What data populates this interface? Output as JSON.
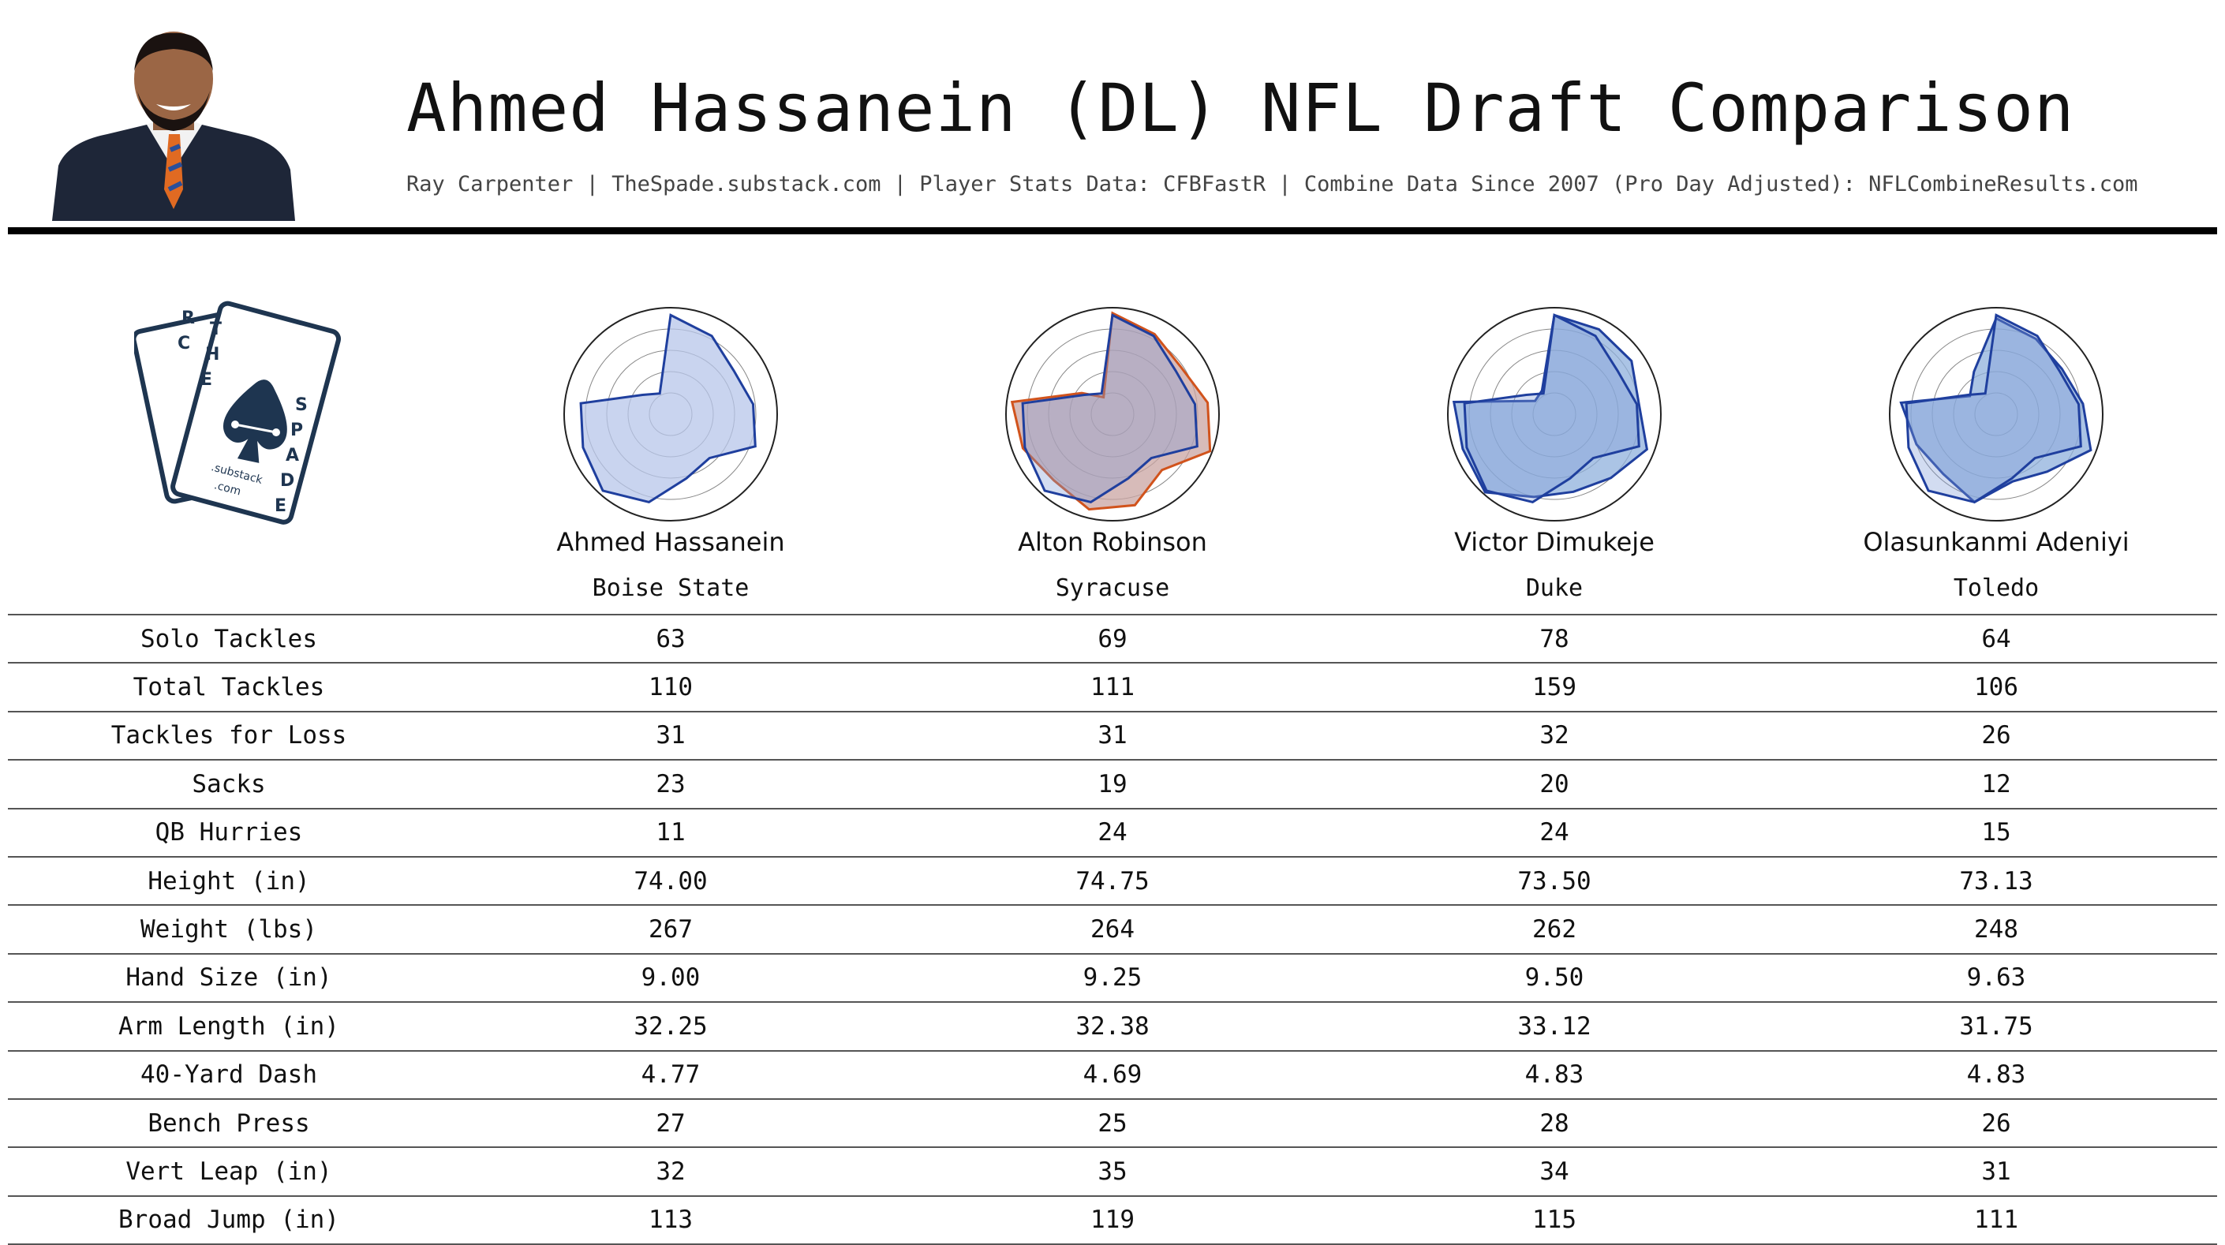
{
  "header": {
    "title": "Ahmed Hassanein (DL) NFL Draft Comparison",
    "subtitle": "Ray Carpenter | TheSpade.substack.com | Player Stats Data: CFBFastR | Combine Data Since 2007 (Pro Day Adjusted): NFLCombineResults.com"
  },
  "logo": {
    "letters_top": [
      "R",
      "C",
      "T",
      "H",
      "E"
    ],
    "letters_right": [
      "S",
      "P",
      "A",
      "D",
      "E"
    ],
    "line1": ".substack",
    "line2": ".com"
  },
  "players": [
    {
      "name": "Ahmed Hassanein",
      "school": "Boise State"
    },
    {
      "name": "Alton Robinson",
      "school": "Syracuse"
    },
    {
      "name": "Victor Dimukeje",
      "school": "Duke"
    },
    {
      "name": "Olasunkanmi Adeniyi",
      "school": "Toledo"
    }
  ],
  "colors": {
    "primary": "#1f3f9e",
    "primary_fill": "#b7c6ea",
    "compare": "#d1531c",
    "compare_fill": "#c9a4a2",
    "ring": "#888888"
  },
  "chart_data": {
    "type": "table",
    "metrics": [
      "Solo Tackles",
      "Total Tackles",
      "Tackles for Loss",
      "Sacks",
      "QB Hurries",
      "Height (in)",
      "Weight (lbs)",
      "Hand Size (in)",
      "Arm Length (in)",
      "40-Yard Dash",
      "Bench Press",
      "Vert Leap (in)",
      "Broad Jump (in)"
    ],
    "rows": [
      [
        "63",
        "69",
        "78",
        "64"
      ],
      [
        "110",
        "111",
        "159",
        "106"
      ],
      [
        "31",
        "31",
        "32",
        "26"
      ],
      [
        "23",
        "19",
        "20",
        "12"
      ],
      [
        "11",
        "24",
        "24",
        "15"
      ],
      [
        "74.00",
        "74.75",
        "73.50",
        "73.13"
      ],
      [
        "267",
        "264",
        "262",
        "248"
      ],
      [
        "9.00",
        "9.25",
        "9.50",
        "9.63"
      ],
      [
        "32.25",
        "32.38",
        "33.12",
        "31.75"
      ],
      [
        "4.77",
        "4.69",
        "4.83",
        "4.83"
      ],
      [
        "27",
        "25",
        "28",
        "26"
      ],
      [
        "32",
        "35",
        "34",
        "31"
      ],
      [
        "113",
        "119",
        "115",
        "111"
      ]
    ],
    "radar": {
      "type": "radar",
      "axes": 13,
      "range": [
        0,
        1
      ],
      "series": [
        {
          "player_index": 0,
          "values": [
            0.93,
            0.83,
            0.72,
            0.78,
            0.85,
            0.55,
            0.62,
            0.85,
            0.96,
            0.88,
            0.85,
            0.32,
            0.22
          ]
        },
        {
          "player_index": 1,
          "values": [
            0.95,
            0.85,
            0.78,
            0.9,
            0.98,
            0.7,
            0.88,
            0.92,
            0.83,
            0.9,
            0.95,
            0.35,
            0.18
          ]
        },
        {
          "player_index": 2,
          "values": [
            0.93,
            0.9,
            0.88,
            0.8,
            0.93,
            0.8,
            0.75,
            0.8,
            0.98,
            0.92,
            0.95,
            0.22,
            0.25
          ]
        },
        {
          "player_index": 3,
          "values": [
            0.9,
            0.8,
            0.75,
            0.82,
            0.95,
            0.72,
            0.65,
            0.85,
            0.75,
            0.8,
            0.9,
            0.3,
            0.45
          ]
        }
      ]
    }
  }
}
